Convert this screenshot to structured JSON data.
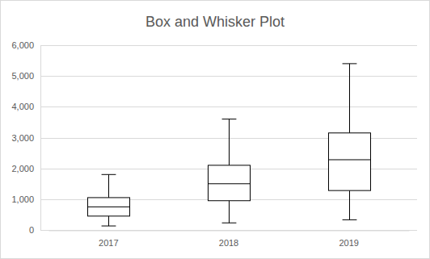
{
  "chart_data": {
    "type": "box",
    "title": "Box and Whisker Plot",
    "categories": [
      "2017",
      "2018",
      "2019"
    ],
    "min": [
      130,
      230,
      330
    ],
    "q1": [
      450,
      950,
      1280
    ],
    "median": [
      750,
      1500,
      2280
    ],
    "q3": [
      1050,
      2100,
      3150
    ],
    "max": [
      1800,
      3600,
      5400
    ],
    "color": "#000000",
    "ylim": [
      0,
      6000
    ],
    "yticks": [
      0,
      {
        "value": 1000,
        "label": "1,000"
      },
      {
        "value": 2000,
        "label": "2,000"
      },
      {
        "value": 3000,
        "label": "3,000"
      },
      {
        "value": 4000,
        "label": "4,000"
      },
      {
        "value": 5000,
        "label": "5,000"
      },
      {
        "value": 6000,
        "label": "6,000"
      }
    ],
    "grid": true
  }
}
